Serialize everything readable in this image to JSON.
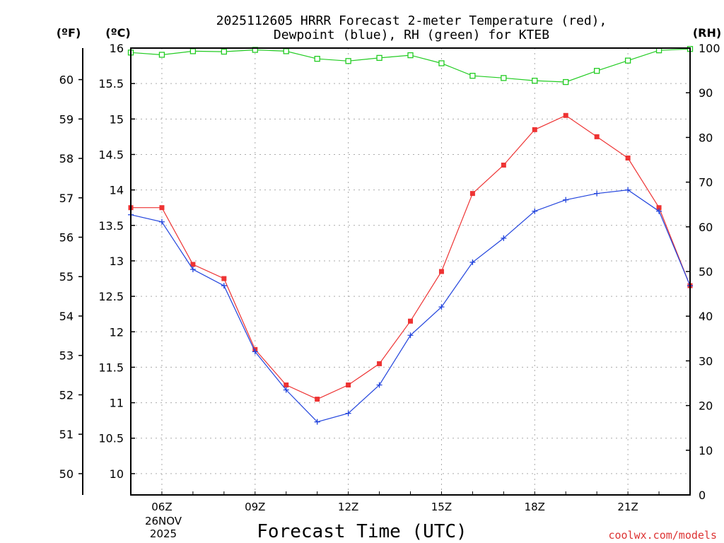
{
  "chart_data": {
    "type": "line",
    "title_line1": "2025112605 HRRR Forecast 2-meter Temperature (red),",
    "title_line2": "Dewpoint (blue), RH (green) for KTEB",
    "xlabel": "Forecast Time (UTC)",
    "watermark": "coolwx.com/models",
    "axes": {
      "fahrenheit_label": "(ºF)",
      "celsius_label": "(ºC)",
      "rh_label": "(RH)",
      "celsius_range": [
        9.7,
        16
      ],
      "rh_range": [
        0,
        100
      ],
      "fahrenheit_ticks": [
        50,
        51,
        52,
        53,
        54,
        55,
        56,
        57,
        58,
        59,
        60
      ],
      "celsius_ticks": [
        "10",
        "10.5",
        "11",
        "11.5",
        "12",
        "12.5",
        "13",
        "13.5",
        "14",
        "14.5",
        "15",
        "15.5",
        "16"
      ],
      "rh_ticks": [
        0,
        10,
        20,
        30,
        40,
        50,
        60,
        70,
        80,
        90,
        100
      ]
    },
    "x": {
      "hours": [
        5,
        6,
        7,
        8,
        9,
        10,
        11,
        12,
        13,
        14,
        15,
        16,
        17,
        18,
        19,
        20,
        21,
        22,
        23
      ],
      "range": [
        5,
        23
      ],
      "ticks": [
        {
          "hour": 6,
          "label": "06Z"
        },
        {
          "hour": 9,
          "label": "09Z"
        },
        {
          "hour": 12,
          "label": "12Z"
        },
        {
          "hour": 15,
          "label": "15Z"
        },
        {
          "hour": 18,
          "label": "18Z"
        },
        {
          "hour": 21,
          "label": "21Z"
        }
      ],
      "date_line1": "26NOV",
      "date_line2": "2025"
    },
    "series": [
      {
        "name": "Temperature",
        "units": "C",
        "color": "#ee3333",
        "marker": "square",
        "values": [
          13.75,
          13.75,
          12.95,
          12.75,
          11.75,
          11.25,
          11.05,
          11.25,
          11.55,
          12.15,
          12.85,
          13.95,
          14.35,
          14.85,
          15.05,
          14.75,
          14.45,
          13.75,
          12.65
        ]
      },
      {
        "name": "Dewpoint",
        "units": "C",
        "color": "#2244dd",
        "marker": "plus",
        "values": [
          13.65,
          13.55,
          12.88,
          12.65,
          11.72,
          11.18,
          10.73,
          10.85,
          11.25,
          11.95,
          12.35,
          12.98,
          13.32,
          13.7,
          13.86,
          13.95,
          14.0,
          13.7,
          12.65
        ]
      },
      {
        "name": "RH",
        "units": "%",
        "color": "#22cc22",
        "marker": "open-square",
        "values": [
          99,
          98.5,
          99.3,
          99.2,
          99.6,
          99.3,
          97.6,
          97.1,
          97.8,
          98.4,
          96.6,
          93.8,
          93.3,
          92.7,
          92.4,
          94.9,
          97.2,
          99.5,
          99.8
        ]
      }
    ]
  }
}
